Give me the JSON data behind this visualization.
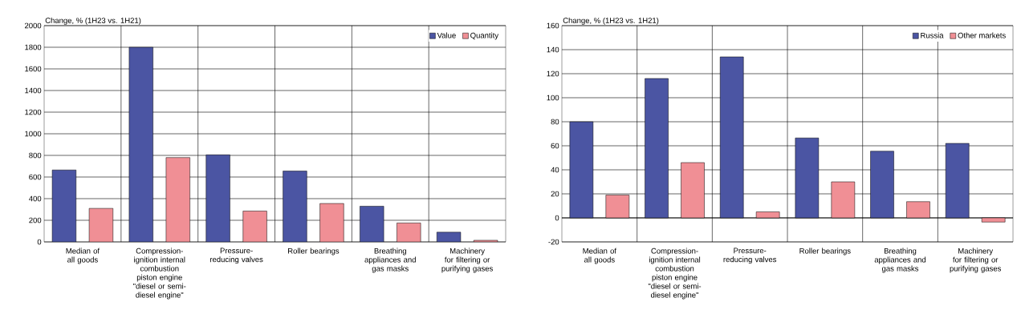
{
  "chart_data": [
    {
      "type": "bar",
      "ylabel": "Change, % (1H23 vs. 1H21)",
      "categories": [
        "Median of all goods",
        "Compression-ignition internal combustion piston engine \"diesel or semi-diesel engine\"",
        "Pressure-reducing valves",
        "Roller bearings",
        "Breathing appliances and gas masks",
        "Machinery for filtering or purifying gases"
      ],
      "series": [
        {
          "name": "Value",
          "color": "#4b55a3",
          "values": [
            665,
            1800,
            805,
            655,
            330,
            90
          ]
        },
        {
          "name": "Quantity",
          "color": "#f08f95",
          "values": [
            310,
            780,
            285,
            355,
            175,
            15
          ]
        }
      ],
      "ylim": [
        0,
        2000
      ],
      "yticks": [
        0,
        200,
        400,
        600,
        800,
        1000,
        1200,
        1400,
        1600,
        1800,
        2000
      ],
      "grid": true,
      "legend": "top right"
    },
    {
      "type": "bar",
      "ylabel": "Change, % (1H23 vs. 1H21)",
      "categories": [
        "Median of all goods",
        "Compression-ignition internal combustion piston engine \"diesel or semi-diesel engine\"",
        "Pressure-reducing valves",
        "Roller bearings",
        "Breathing appliances and gas masks",
        "Machinery for filtering or purifying gases"
      ],
      "series": [
        {
          "name": "Russia",
          "color": "#4b55a3",
          "values": [
            80,
            116,
            134,
            66.5,
            55.5,
            62
          ]
        },
        {
          "name": "Other markets",
          "color": "#f08f95",
          "values": [
            19,
            46,
            5,
            30,
            13.5,
            -3.5
          ]
        }
      ],
      "ylim": [
        -20,
        160
      ],
      "yticks": [
        -20,
        0,
        20,
        40,
        60,
        80,
        100,
        120,
        140,
        160
      ],
      "grid": true,
      "legend": "top right"
    }
  ]
}
